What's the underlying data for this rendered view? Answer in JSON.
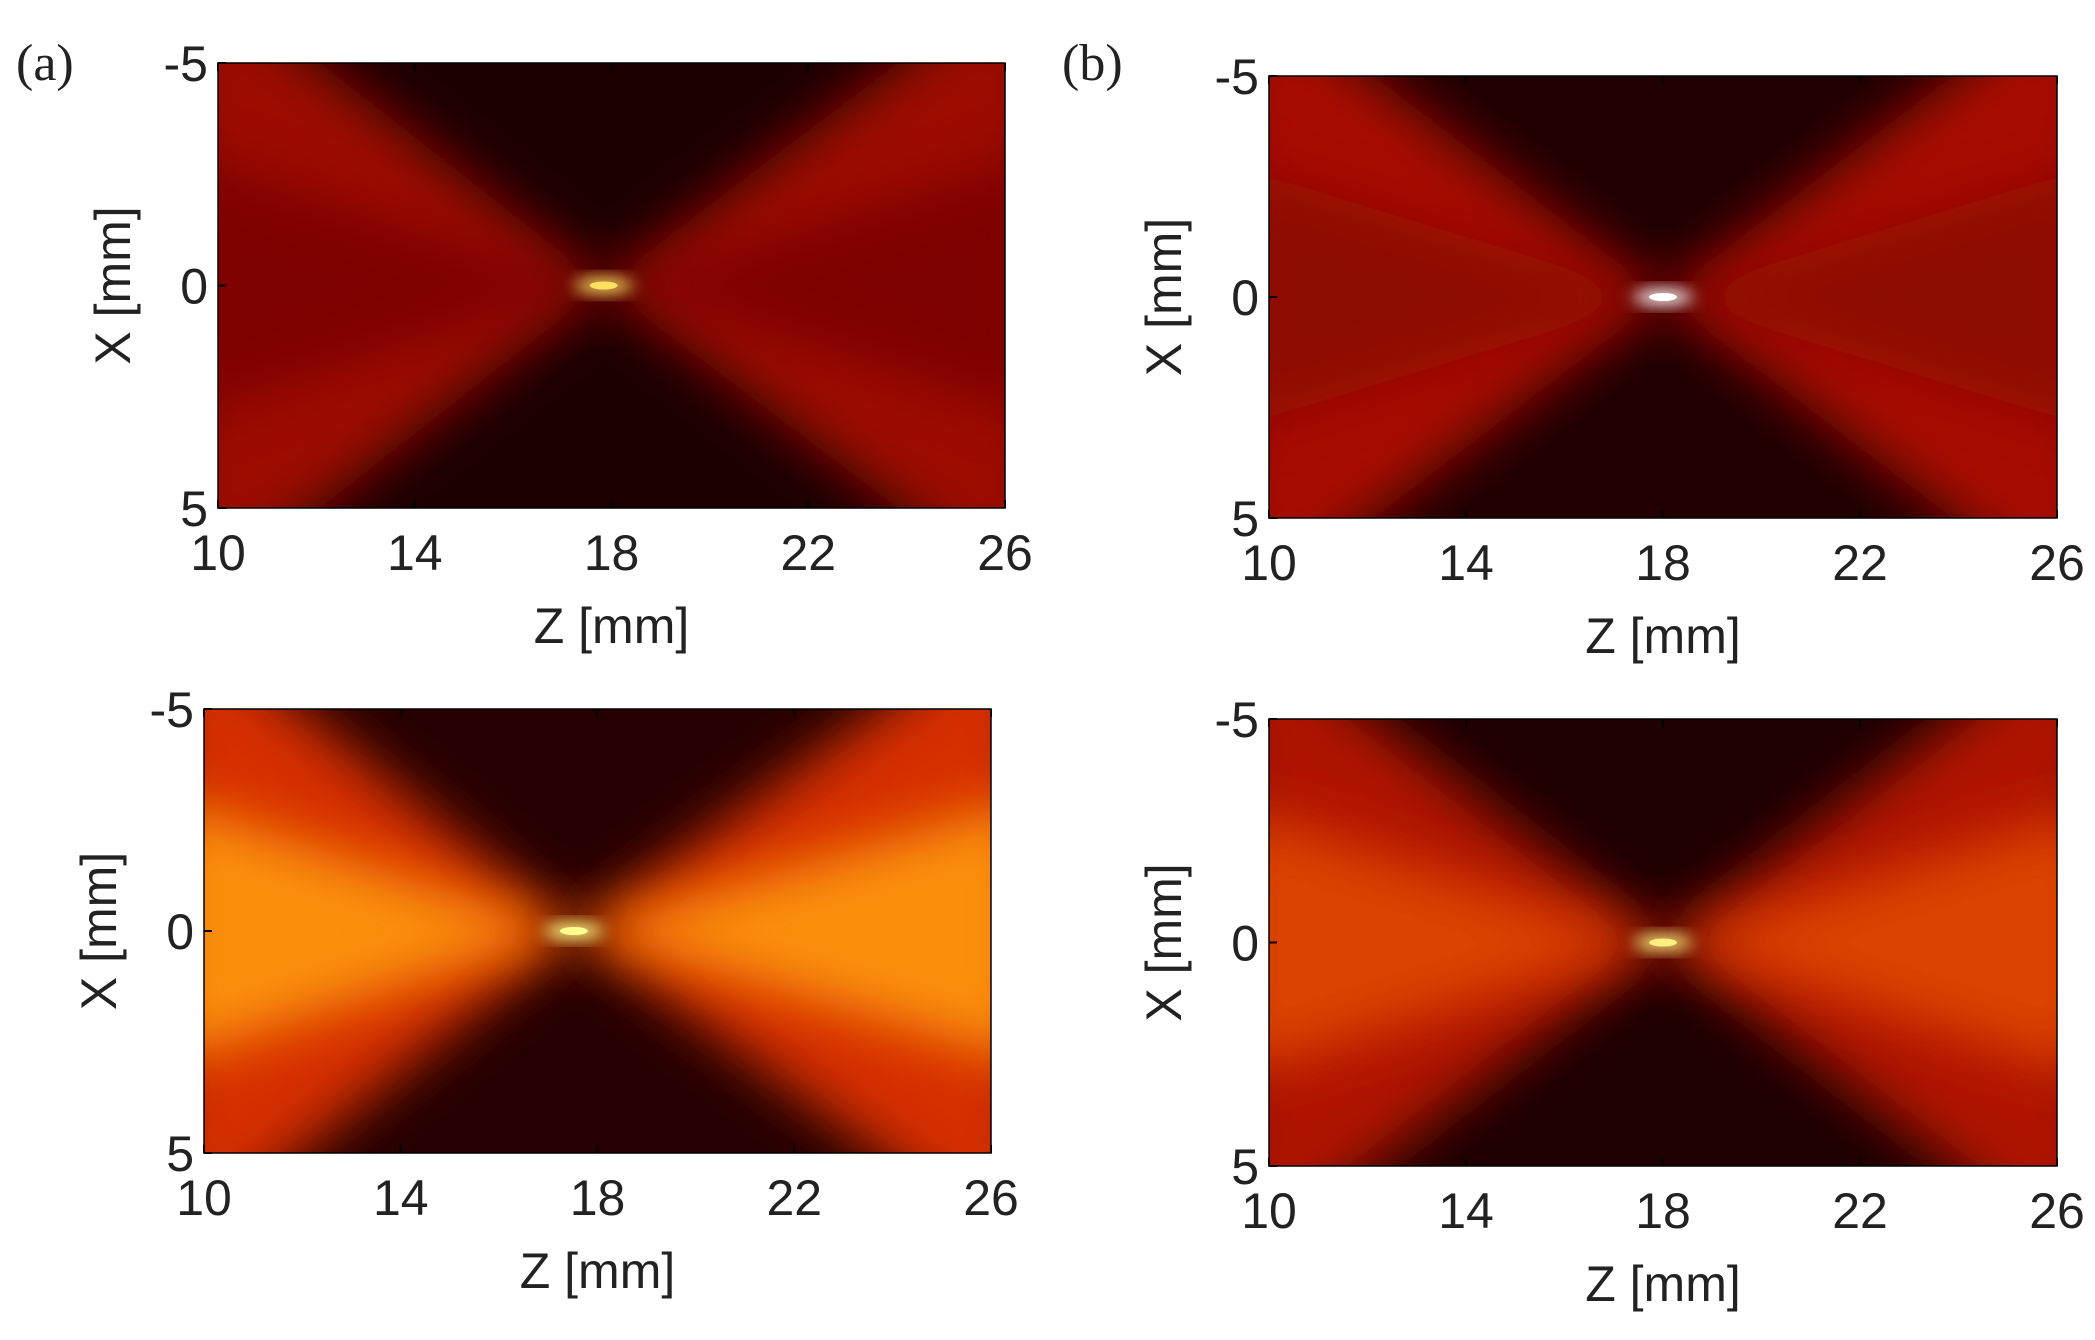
{
  "chart_data": [
    {
      "type": "heatmap",
      "panel_label": "(a)",
      "xlabel": "Z [mm]",
      "ylabel": "X [mm]",
      "xlim": [
        10,
        26
      ],
      "xticks": [
        10,
        14,
        18,
        22,
        26
      ],
      "ylim": [
        -5,
        5
      ],
      "yticks": [
        -5,
        0,
        5
      ],
      "y_reversed": true
    },
    {
      "type": "heatmap",
      "panel_label": "(b)",
      "xlabel": "Z [mm]",
      "ylabel": "X [mm]",
      "xlim": [
        10,
        26
      ],
      "xticks": [
        10,
        14,
        18,
        22,
        26
      ],
      "ylim": [
        -5,
        5
      ],
      "yticks": [
        -5,
        0,
        5
      ],
      "y_reversed": true
    },
    {
      "type": "heatmap",
      "xlabel": "Z [mm]",
      "ylabel": "X [mm]",
      "xlim": [
        10,
        26
      ],
      "xticks": [
        10,
        14,
        18,
        22,
        26
      ],
      "ylim": [
        -5,
        5
      ],
      "yticks": [
        -5,
        0,
        5
      ],
      "y_reversed": true
    },
    {
      "type": "heatmap",
      "xlabel": "Z [mm]",
      "ylabel": "X [mm]",
      "xlim": [
        10,
        26
      ],
      "xticks": [
        10,
        14,
        18,
        22,
        26
      ],
      "ylim": [
        -5,
        5
      ],
      "yticks": [
        -5,
        0,
        5
      ],
      "y_reversed": true
    }
  ]
}
